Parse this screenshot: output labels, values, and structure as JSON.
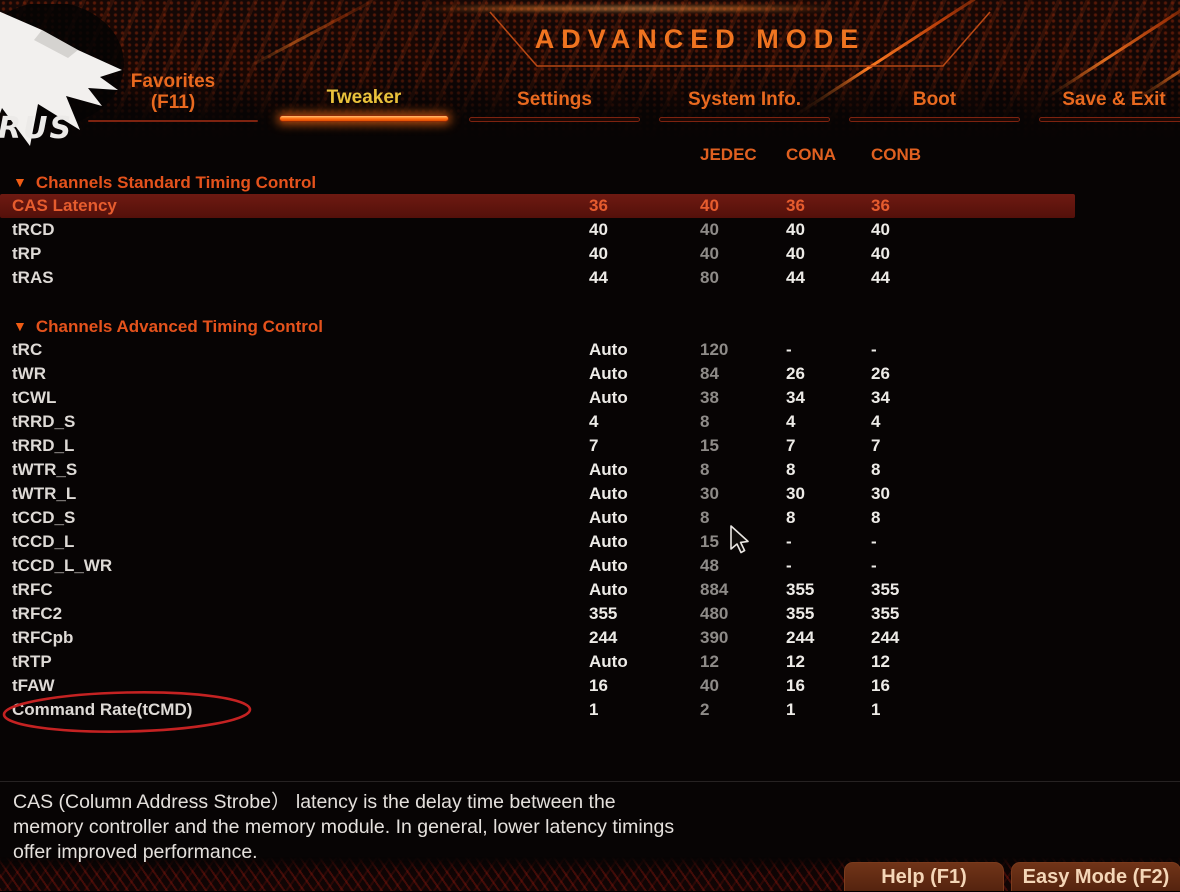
{
  "header": {
    "mode_title": "ADVANCED MODE",
    "brand": "AORUS",
    "brand_wordmark": "RUS"
  },
  "tabs": [
    {
      "label": "Favorites",
      "sublabel": "(F11)",
      "active": false
    },
    {
      "label": "Tweaker",
      "active": true
    },
    {
      "label": "Settings",
      "active": false
    },
    {
      "label": "System Info.",
      "active": false
    },
    {
      "label": "Boot",
      "active": false
    },
    {
      "label": "Save & Exit",
      "active": false
    }
  ],
  "timing_table": {
    "columns": [
      "JEDEC",
      "CONA",
      "CONB"
    ],
    "sections": [
      {
        "title": "Channels Standard Timing Control",
        "rows": [
          {
            "label": "CAS Latency",
            "current": "36",
            "jedec": "40",
            "cona": "36",
            "conb": "36",
            "selected": true
          },
          {
            "label": "tRCD",
            "current": "40",
            "jedec": "40",
            "cona": "40",
            "conb": "40"
          },
          {
            "label": "tRP",
            "current": "40",
            "jedec": "40",
            "cona": "40",
            "conb": "40"
          },
          {
            "label": "tRAS",
            "current": "44",
            "jedec": "80",
            "cona": "44",
            "conb": "44"
          }
        ]
      },
      {
        "title": "Channels Advanced Timing Control",
        "rows": [
          {
            "label": "tRC",
            "current": "Auto",
            "jedec": "120",
            "cona": "-",
            "conb": "-"
          },
          {
            "label": "tWR",
            "current": "Auto",
            "jedec": "84",
            "cona": "26",
            "conb": "26"
          },
          {
            "label": "tCWL",
            "current": "Auto",
            "jedec": "38",
            "cona": "34",
            "conb": "34"
          },
          {
            "label": "tRRD_S",
            "current": "4",
            "jedec": "8",
            "cona": "4",
            "conb": "4"
          },
          {
            "label": "tRRD_L",
            "current": "7",
            "jedec": "15",
            "cona": "7",
            "conb": "7"
          },
          {
            "label": "tWTR_S",
            "current": "Auto",
            "jedec": "8",
            "cona": "8",
            "conb": "8"
          },
          {
            "label": "tWTR_L",
            "current": "Auto",
            "jedec": "30",
            "cona": "30",
            "conb": "30"
          },
          {
            "label": "tCCD_S",
            "current": "Auto",
            "jedec": "8",
            "cona": "8",
            "conb": "8"
          },
          {
            "label": "tCCD_L",
            "current": "Auto",
            "jedec": "15",
            "cona": "-",
            "conb": "-"
          },
          {
            "label": "tCCD_L_WR",
            "current": "Auto",
            "jedec": "48",
            "cona": "-",
            "conb": "-"
          },
          {
            "label": "tRFC",
            "current": "Auto",
            "jedec": "884",
            "cona": "355",
            "conb": "355"
          },
          {
            "label": "tRFC2",
            "current": "355",
            "jedec": "480",
            "cona": "355",
            "conb": "355"
          },
          {
            "label": "tRFCpb",
            "current": "244",
            "jedec": "390",
            "cona": "244",
            "conb": "244"
          },
          {
            "label": "tRTP",
            "current": "Auto",
            "jedec": "12",
            "cona": "12",
            "conb": "12"
          },
          {
            "label": "tFAW",
            "current": "16",
            "jedec": "40",
            "cona": "16",
            "conb": "16"
          },
          {
            "label": "Command Rate(tCMD)",
            "current": "1",
            "jedec": "2",
            "cona": "1",
            "conb": "1",
            "annotated": true
          }
        ]
      }
    ]
  },
  "help_panel": {
    "text": "CAS (Column Address Strobe） latency is the delay time between the\nmemory controller and the memory module. In general, lower latency timings\noffer improved performance."
  },
  "footer": {
    "help_button": "Help (F1)",
    "easy_mode_button": "Easy Mode (F2)"
  },
  "colors": {
    "accent_orange": "#e8691f",
    "active_tab_text": "#e9c23c",
    "active_underline": "#ff6c12",
    "section_header": "#e4521c",
    "column_header": "#e06020",
    "highlight_row_bg": "#5e140c",
    "highlight_row_text": "#e65c2e",
    "jedec_value_gray": "#8e8b88",
    "value_white": "#edebe7",
    "annotation_red": "#c42222",
    "button_bg": "#713418",
    "button_text": "#f4d6b8"
  }
}
